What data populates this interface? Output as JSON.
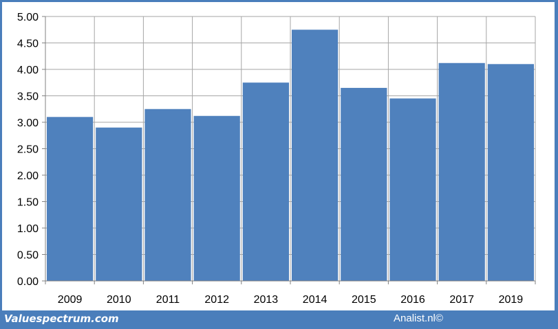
{
  "chart_data": {
    "type": "bar",
    "categories": [
      "2009",
      "2010",
      "2011",
      "2012",
      "2013",
      "2014",
      "2015",
      "2016",
      "2017",
      "2019"
    ],
    "values": [
      3.1,
      2.9,
      3.25,
      3.12,
      3.75,
      4.75,
      3.65,
      3.45,
      4.12,
      4.1
    ],
    "y_ticks": [
      "0.00",
      "0.50",
      "1.00",
      "1.50",
      "2.00",
      "2.50",
      "3.00",
      "3.50",
      "4.00",
      "4.50",
      "5.00"
    ],
    "ylim": [
      0,
      5
    ],
    "grid": true,
    "bar_color": "#4f81bd"
  },
  "footer": {
    "source_left": "Valuespectrum.com",
    "source_right": "Analist.nl©"
  },
  "colors": {
    "frame": "#4a7ebb",
    "bar": "#4f81bd",
    "grid": "#a6a6a6"
  }
}
